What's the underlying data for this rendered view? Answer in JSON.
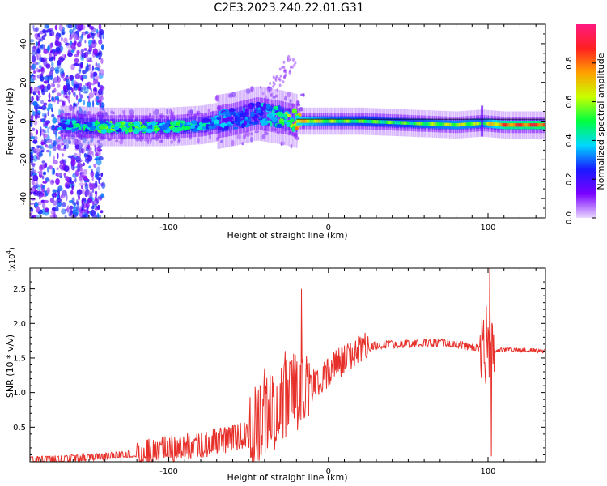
{
  "title": "C2E3.2023.240.22.01.G31",
  "chart_data": [
    {
      "type": "heatmap",
      "title": "C2E3.2023.240.22.01.G31",
      "xlabel": "Height of straight line (km)",
      "ylabel": "Frequency (Hz)",
      "xlim": [
        -187,
        136
      ],
      "ylim": [
        -50,
        50
      ],
      "xticks": [
        -100,
        0,
        100
      ],
      "yticks": [
        -40,
        -20,
        0,
        20,
        40
      ],
      "colorbar": {
        "label": "Normalized spectral amplitude",
        "range": [
          0,
          1
        ],
        "ticks": [
          0.0,
          0.2,
          0.4,
          0.6,
          0.8
        ],
        "colormap": [
          "#e8d8ff",
          "#7a00ff",
          "#1a1aff",
          "#00d8ff",
          "#00ff40",
          "#c8ff00",
          "#ffa000",
          "#ff2020",
          "#ff1a80"
        ]
      },
      "ridge": {
        "x": [
          -165,
          -140,
          -120,
          -100,
          -80,
          -60,
          -45,
          -30,
          -20,
          0,
          20,
          50,
          80,
          96,
          110,
          136
        ],
        "center_hz": [
          -2,
          -3,
          -3,
          -3,
          -2,
          1,
          4,
          2,
          0,
          0,
          0,
          -1,
          -2,
          -1,
          -2,
          -2
        ],
        "amplitude": [
          0.35,
          0.5,
          0.5,
          0.45,
          0.4,
          0.3,
          0.3,
          0.45,
          0.7,
          0.55,
          0.5,
          0.5,
          0.6,
          0.55,
          0.8,
          0.85
        ]
      }
    },
    {
      "type": "line",
      "xlabel": "Height of straight line (km)",
      "ylabel": "SNR (10 * v/v)",
      "yunit": "(x10",
      "yunit_exp": "4",
      "xlim": [
        -187,
        136
      ],
      "ylim": [
        0,
        2.8
      ],
      "xticks": [
        -100,
        0,
        100
      ],
      "yticks": [
        0.5,
        1.0,
        1.5,
        2.0,
        2.5
      ],
      "series": [
        {
          "color": "#e8302a",
          "trend_x": [
            -187,
            -160,
            -140,
            -120,
            -100,
            -80,
            -60,
            -50,
            -40,
            -30,
            -20,
            -10,
            0,
            10,
            20,
            30,
            40,
            50,
            60,
            70,
            80,
            90,
            100,
            102,
            110,
            120,
            136
          ],
          "trend_y": [
            0.03,
            0.05,
            0.08,
            0.12,
            0.18,
            0.25,
            0.33,
            0.42,
            0.55,
            0.75,
            0.95,
            1.1,
            1.3,
            1.5,
            1.62,
            1.68,
            1.7,
            1.71,
            1.72,
            1.72,
            1.7,
            1.66,
            1.6,
            1.6,
            1.62,
            1.62,
            1.6
          ],
          "spikes": [
            {
              "x": -17,
              "y": 2.5
            },
            {
              "x": -14,
              "y": 1.3
            },
            {
              "x": -27,
              "y": 1.6
            },
            {
              "x": -40,
              "y": 1.35
            },
            {
              "x": 101,
              "y": 2.8
            },
            {
              "x": 102,
              "y": 0.08
            },
            {
              "x": 99,
              "y": 2.25
            }
          ]
        }
      ]
    }
  ]
}
